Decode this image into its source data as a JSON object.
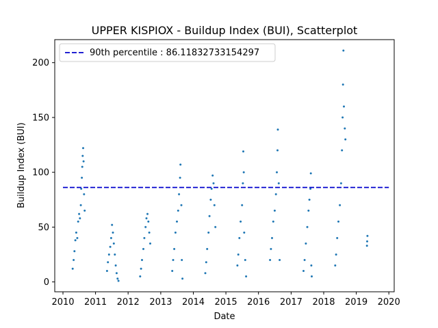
{
  "chart_data": {
    "type": "scatter",
    "title": "UPPER KISPIOX - Buildup Index (BUI), Scatterplot",
    "xlabel": "Date",
    "ylabel": "Buildup Index (BUI)",
    "xlim": [
      "2009-10-01",
      "2020-03-01"
    ],
    "ylim": [
      -9,
      221
    ],
    "x_ticks": [
      "2010",
      "2011",
      "2012",
      "2013",
      "2014",
      "2015",
      "2016",
      "2017",
      "2018",
      "2019",
      "2020"
    ],
    "y_ticks": [
      0,
      50,
      100,
      150,
      200
    ],
    "grid": false,
    "legend_position": "top-left",
    "colors": {
      "points": "#1f77b4",
      "reference_line": "#0000cc"
    },
    "reference_line": {
      "label": "90th percentile : 86.11832733154297",
      "value": 86.11832733154297,
      "style": "dashed"
    },
    "series": [
      {
        "points": [
          [
            "2010-04-20",
            12
          ],
          [
            "2010-05-01",
            20
          ],
          [
            "2010-05-10",
            28
          ],
          [
            "2010-05-20",
            38
          ],
          [
            "2010-05-30",
            45
          ],
          [
            "2010-06-10",
            40
          ],
          [
            "2010-06-20",
            55
          ],
          [
            "2010-07-01",
            62
          ],
          [
            "2010-07-10",
            58
          ],
          [
            "2010-07-20",
            70
          ],
          [
            "2010-07-25",
            85
          ],
          [
            "2010-08-01",
            95
          ],
          [
            "2010-08-05",
            105
          ],
          [
            "2010-08-10",
            115
          ],
          [
            "2010-08-15",
            122
          ],
          [
            "2010-08-20",
            110
          ],
          [
            "2010-08-25",
            80
          ],
          [
            "2010-09-01",
            65
          ],
          [
            "2011-05-10",
            10
          ],
          [
            "2011-05-20",
            18
          ],
          [
            "2011-06-01",
            25
          ],
          [
            "2011-06-15",
            32
          ],
          [
            "2011-06-25",
            40
          ],
          [
            "2011-07-05",
            52
          ],
          [
            "2011-07-15",
            45
          ],
          [
            "2011-07-25",
            35
          ],
          [
            "2011-08-05",
            25
          ],
          [
            "2011-08-15",
            15
          ],
          [
            "2011-08-25",
            8
          ],
          [
            "2011-09-05",
            3
          ],
          [
            "2011-09-15",
            1
          ],
          [
            "2012-05-15",
            5
          ],
          [
            "2012-05-25",
            12
          ],
          [
            "2012-06-05",
            20
          ],
          [
            "2012-06-20",
            30
          ],
          [
            "2012-07-01",
            40
          ],
          [
            "2012-07-15",
            50
          ],
          [
            "2012-07-25",
            58
          ],
          [
            "2012-08-05",
            62
          ],
          [
            "2012-08-15",
            55
          ],
          [
            "2012-08-25",
            45
          ],
          [
            "2012-09-05",
            35
          ],
          [
            "2013-05-10",
            10
          ],
          [
            "2013-05-20",
            20
          ],
          [
            "2013-06-01",
            30
          ],
          [
            "2013-06-15",
            45
          ],
          [
            "2013-07-01",
            55
          ],
          [
            "2013-07-15",
            65
          ],
          [
            "2013-07-25",
            80
          ],
          [
            "2013-08-05",
            95
          ],
          [
            "2013-08-10",
            107
          ],
          [
            "2013-08-20",
            70
          ],
          [
            "2013-08-25",
            20
          ],
          [
            "2013-09-01",
            3
          ],
          [
            "2014-05-15",
            8
          ],
          [
            "2014-05-25",
            18
          ],
          [
            "2014-06-05",
            30
          ],
          [
            "2014-06-20",
            45
          ],
          [
            "2014-07-01",
            60
          ],
          [
            "2014-07-15",
            75
          ],
          [
            "2014-07-25",
            85
          ],
          [
            "2014-08-05",
            97
          ],
          [
            "2014-08-15",
            90
          ],
          [
            "2014-08-25",
            70
          ],
          [
            "2014-09-05",
            50
          ],
          [
            "2015-05-10",
            15
          ],
          [
            "2015-05-20",
            25
          ],
          [
            "2015-06-01",
            40
          ],
          [
            "2015-06-15",
            55
          ],
          [
            "2015-07-01",
            70
          ],
          [
            "2015-07-10",
            90
          ],
          [
            "2015-07-15",
            119
          ],
          [
            "2015-07-20",
            100
          ],
          [
            "2015-07-25",
            45
          ],
          [
            "2015-08-05",
            20
          ],
          [
            "2015-08-15",
            5
          ],
          [
            "2016-05-10",
            20
          ],
          [
            "2016-05-20",
            30
          ],
          [
            "2016-06-01",
            40
          ],
          [
            "2016-06-15",
            55
          ],
          [
            "2016-07-01",
            65
          ],
          [
            "2016-07-15",
            80
          ],
          [
            "2016-07-25",
            100
          ],
          [
            "2016-08-01",
            120
          ],
          [
            "2016-08-05",
            139
          ],
          [
            "2016-08-15",
            90
          ],
          [
            "2016-08-25",
            20
          ],
          [
            "2017-05-20",
            10
          ],
          [
            "2017-06-01",
            20
          ],
          [
            "2017-06-15",
            35
          ],
          [
            "2017-07-01",
            50
          ],
          [
            "2017-07-15",
            65
          ],
          [
            "2017-07-25",
            75
          ],
          [
            "2017-08-05",
            85
          ],
          [
            "2017-08-10",
            99
          ],
          [
            "2017-08-15",
            15
          ],
          [
            "2017-08-20",
            5
          ],
          [
            "2018-05-10",
            15
          ],
          [
            "2018-05-20",
            25
          ],
          [
            "2018-06-01",
            40
          ],
          [
            "2018-06-15",
            55
          ],
          [
            "2018-07-01",
            70
          ],
          [
            "2018-07-15",
            90
          ],
          [
            "2018-07-25",
            120
          ],
          [
            "2018-08-01",
            150
          ],
          [
            "2018-08-05",
            180
          ],
          [
            "2018-08-10",
            211
          ],
          [
            "2018-08-15",
            160
          ],
          [
            "2018-08-25",
            140
          ],
          [
            "2018-09-01",
            130
          ],
          [
            "2019-05-01",
            33
          ],
          [
            "2019-05-03",
            37
          ],
          [
            "2019-05-06",
            42
          ]
        ]
      }
    ]
  }
}
